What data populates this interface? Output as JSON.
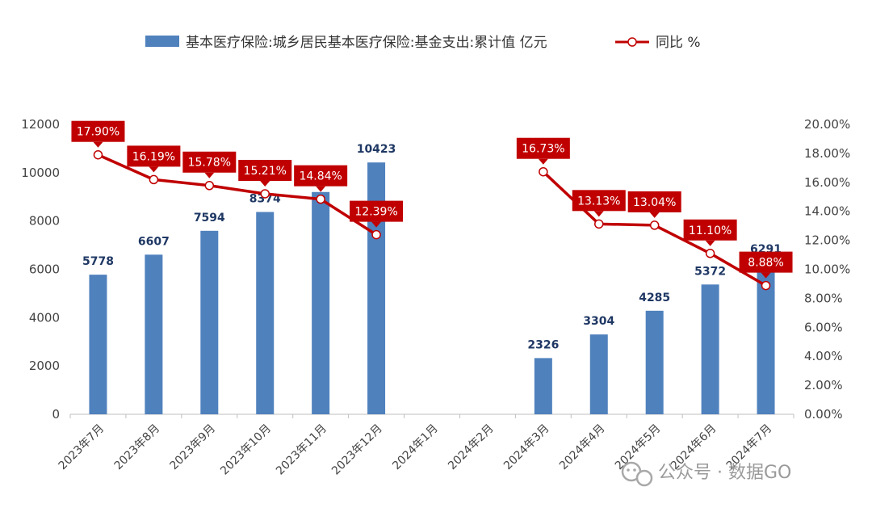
{
  "chart_data": {
    "type": "bar+line",
    "categories": [
      "2023年7月",
      "2023年8月",
      "2023年9月",
      "2023年10月",
      "2023年11月",
      "2023年12月",
      "2024年1月",
      "2024年2月",
      "2024年3月",
      "2024年4月",
      "2024年5月",
      "2024年6月",
      "2024年7月"
    ],
    "series": [
      {
        "name": "基本医疗保险:城乡居民基本医疗保险:基金支出:累计值 亿元",
        "kind": "bar",
        "axis": "left",
        "color": "#4f81bd",
        "values": [
          5778,
          6607,
          7594,
          8374,
          9200,
          10423,
          null,
          null,
          2326,
          3304,
          4285,
          5372,
          6291
        ],
        "labels": [
          "5778",
          "6607",
          "7594",
          "8374",
          "",
          "10423",
          "",
          "",
          "2326",
          "3304",
          "4285",
          "5372",
          "6291"
        ]
      },
      {
        "name": "同比 %",
        "kind": "line",
        "axis": "right",
        "color": "#c00000",
        "values": [
          17.9,
          16.19,
          15.78,
          15.21,
          14.84,
          12.39,
          null,
          null,
          16.73,
          13.13,
          13.04,
          11.1,
          8.88
        ],
        "labels": [
          "17.90%",
          "16.19%",
          "15.78%",
          "15.21%",
          "14.84%",
          "12.39%",
          "",
          "",
          "16.73%",
          "13.13%",
          "13.04%",
          "11.10%",
          "8.88%"
        ]
      }
    ],
    "y_left": {
      "min": 0,
      "max": 12000,
      "ticks": [
        "0",
        "2000",
        "4000",
        "6000",
        "8000",
        "10000",
        "12000"
      ]
    },
    "y_right": {
      "min": 0,
      "max": 20,
      "ticks": [
        "0.00%",
        "2.00%",
        "4.00%",
        "6.00%",
        "8.00%",
        "10.00%",
        "12.00%",
        "14.00%",
        "16.00%",
        "18.00%",
        "20.00%"
      ]
    },
    "legend_position": "top-center",
    "grid": false
  },
  "watermark": {
    "text": "公众号 · 数据GO"
  }
}
